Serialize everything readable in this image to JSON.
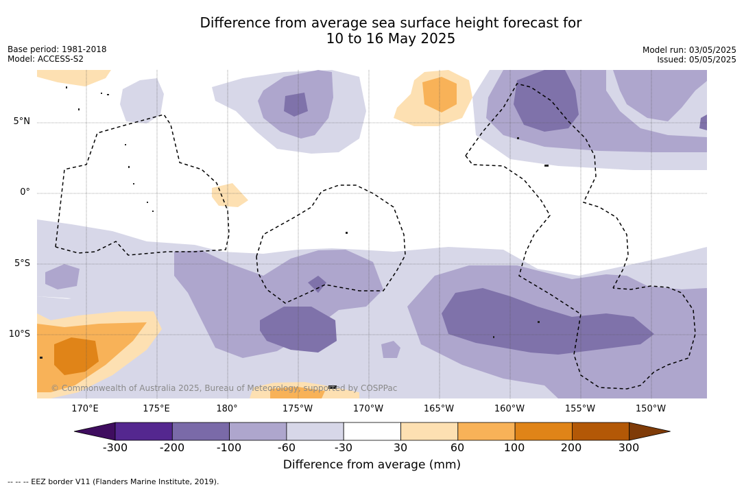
{
  "title_line1": "Difference from average sea surface height forecast for",
  "title_line2": "10 to 16 May 2025",
  "base_period": "Base period: 1981-2018",
  "model": "Model: ACCESS-S2",
  "model_run": "Model run: 03/05/2025",
  "issued": "Issued: 05/05/2025",
  "lat_labels": [
    "5°N",
    "0°",
    "5°S",
    "10°S"
  ],
  "lon_labels": [
    "170°E",
    "175°E",
    "180°",
    "175°W",
    "170°W",
    "165°W",
    "160°W",
    "155°W",
    "150°W"
  ],
  "copyright": "© Commonwealth of Australia 2025, Bureau of Meteorology, supported by COSPPac",
  "colorbar": {
    "ticks": [
      "-300",
      "-200",
      "-100",
      "-60",
      "-30",
      "30",
      "60",
      "100",
      "200",
      "300"
    ],
    "colors": [
      "#3f0d5f",
      "#54278f",
      "#7a6aa8",
      "#aea6cd",
      "#d7d7e8",
      "#ffffff",
      "#fde0b2",
      "#f8b258",
      "#e08418",
      "#b35806",
      "#7f3b08"
    ],
    "label": "Difference from average (mm)"
  },
  "eez_note": "--  --  -- EEZ border V11 (Flanders Marine Institute, 2019)."
}
